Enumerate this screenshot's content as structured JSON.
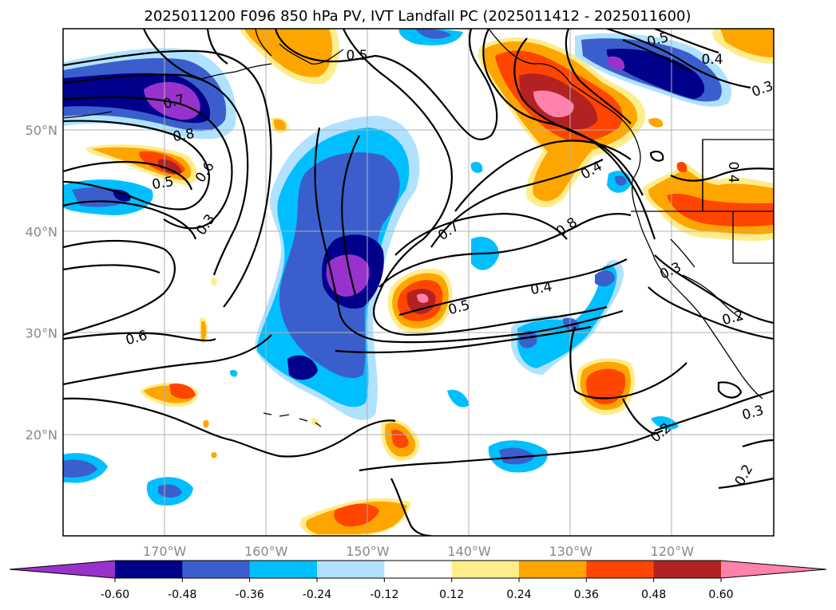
{
  "title": "2025011200 F096 850 hPa PV, IVT Landfall PC (2025011412 - 2025011600)",
  "map": {
    "lon_range": [
      -180,
      -110
    ],
    "lat_range": [
      10,
      60
    ],
    "lon_ticks": [
      {
        "value": -170,
        "label": "170°W"
      },
      {
        "value": -160,
        "label": "160°W"
      },
      {
        "value": -150,
        "label": "150°W"
      },
      {
        "value": -140,
        "label": "140°W"
      },
      {
        "value": -130,
        "label": "130°W"
      },
      {
        "value": -120,
        "label": "120°W"
      }
    ],
    "lat_ticks": [
      {
        "value": 20,
        "label": "20°N"
      },
      {
        "value": 30,
        "label": "30°N"
      },
      {
        "value": 40,
        "label": "40°N"
      },
      {
        "value": 50,
        "label": "50°N"
      }
    ],
    "grid": true,
    "contour_labels": [
      "0.5",
      "0.4",
      "0.3",
      "0.7",
      "0.8",
      "0.6",
      "0.5",
      "0.3",
      "0.6",
      "0.7",
      "0.8",
      "0.4",
      "0.5",
      "0.4",
      "0.3",
      "0.2",
      "0.3",
      "0.2",
      "0.2",
      "0.4",
      "0.5"
    ]
  },
  "colorbar": {
    "levels": [
      "-0.60",
      "-0.48",
      "-0.36",
      "-0.24",
      "-0.12",
      "0.12",
      "0.24",
      "0.36",
      "0.48",
      "0.60"
    ],
    "colors": [
      "#9932cc",
      "#00008b",
      "#3a5fcd",
      "#00bfff",
      "#b0e2ff",
      "#ffffff",
      "#ffec8b",
      "#ffa500",
      "#ff4500",
      "#b22222",
      "#ff82ab"
    ],
    "extend": "both"
  }
}
